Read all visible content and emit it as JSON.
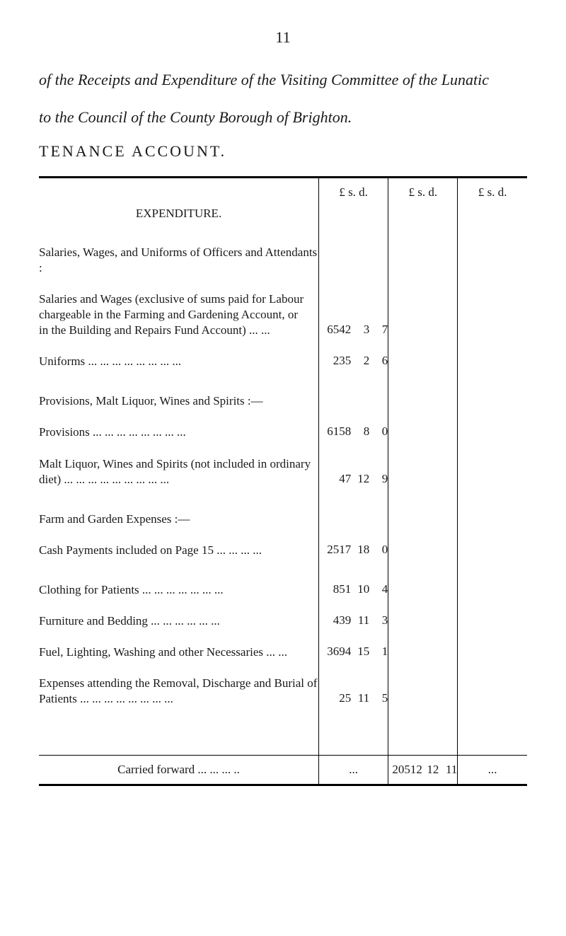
{
  "page_number": "11",
  "intro_lines": [
    "of the Receipts and Expenditure of the Visiting Committee of the Lunatic",
    "to the Council of the County Borough of Brighton."
  ],
  "section_title": "TENANCE  ACCOUNT.",
  "money_header": "£  s.  d.",
  "expenditure_heading": "EXPENDITURE.",
  "rows": {
    "salaries_heading": "Salaries, Wages, and Uniforms of Officers and Attendants :",
    "salaries_sub1_l1": "Salaries and Wages (exclusive of sums paid for Labour",
    "salaries_sub1_l2": "chargeable in the Farming and Gardening Account, or",
    "salaries_sub1_l3": "in the Building and Repairs Fund Account)   ...   ...",
    "salaries_sub1_amt_p": "6542",
    "salaries_sub1_amt_s": "3",
    "salaries_sub1_amt_d": "7",
    "uniforms_label": "Uniforms   ...   ...   ...   ...   ...   ...   ...   ...",
    "uniforms_p": "235",
    "uniforms_s": "2",
    "uniforms_d": "6",
    "provisions_heading": "Provisions, Malt Liquor, Wines and Spirits :—",
    "provisions_label": "Provisions   ...   ...   ...   ...   ...   ...   ...   ...",
    "provisions_p": "6158",
    "provisions_s": "8",
    "provisions_d": "0",
    "malt_l1": "Malt Liquor, Wines and Spirits (not included in ordinary",
    "malt_l2": "diet) ...   ...   ...   ...   ...   ...   ...   ...   ...",
    "malt_p": "47",
    "malt_s": "12",
    "malt_d": "9",
    "farm_heading": "Farm and Garden Expenses :—",
    "cash_label": "Cash Payments included on Page 15 ...   ...   ...   ...",
    "cash_p": "2517",
    "cash_s": "18",
    "cash_d": "0",
    "clothing_label": "Clothing for Patients ...   ...   ...   ...   ...   ...   ...",
    "clothing_p": "851",
    "clothing_s": "10",
    "clothing_d": "4",
    "furniture_label": "Furniture and Bedding   ...   ...   ...   ...   ...   ...",
    "furniture_p": "439",
    "furniture_s": "11",
    "furniture_d": "3",
    "fuel_label": "Fuel, Lighting, Washing and other Necessaries   ...   ...",
    "fuel_p": "3694",
    "fuel_s": "15",
    "fuel_d": "1",
    "removal_l1": "Expenses attending the Removal, Discharge and Burial of",
    "removal_l2": "Patients   ...   ...   ...   ...   ...   ...   ...   ...",
    "removal_p": "25",
    "removal_s": "11",
    "removal_d": "5",
    "carried_label": "Carried forward   ...   ...   ...   ..",
    "carried_col1": "...",
    "carried_col2_p": "20512",
    "carried_col2_s": "12",
    "carried_col2_d": "11",
    "carried_col3": "..."
  },
  "colors": {
    "text": "#1a1a1a",
    "background": "#ffffff",
    "rule": "#000000"
  }
}
